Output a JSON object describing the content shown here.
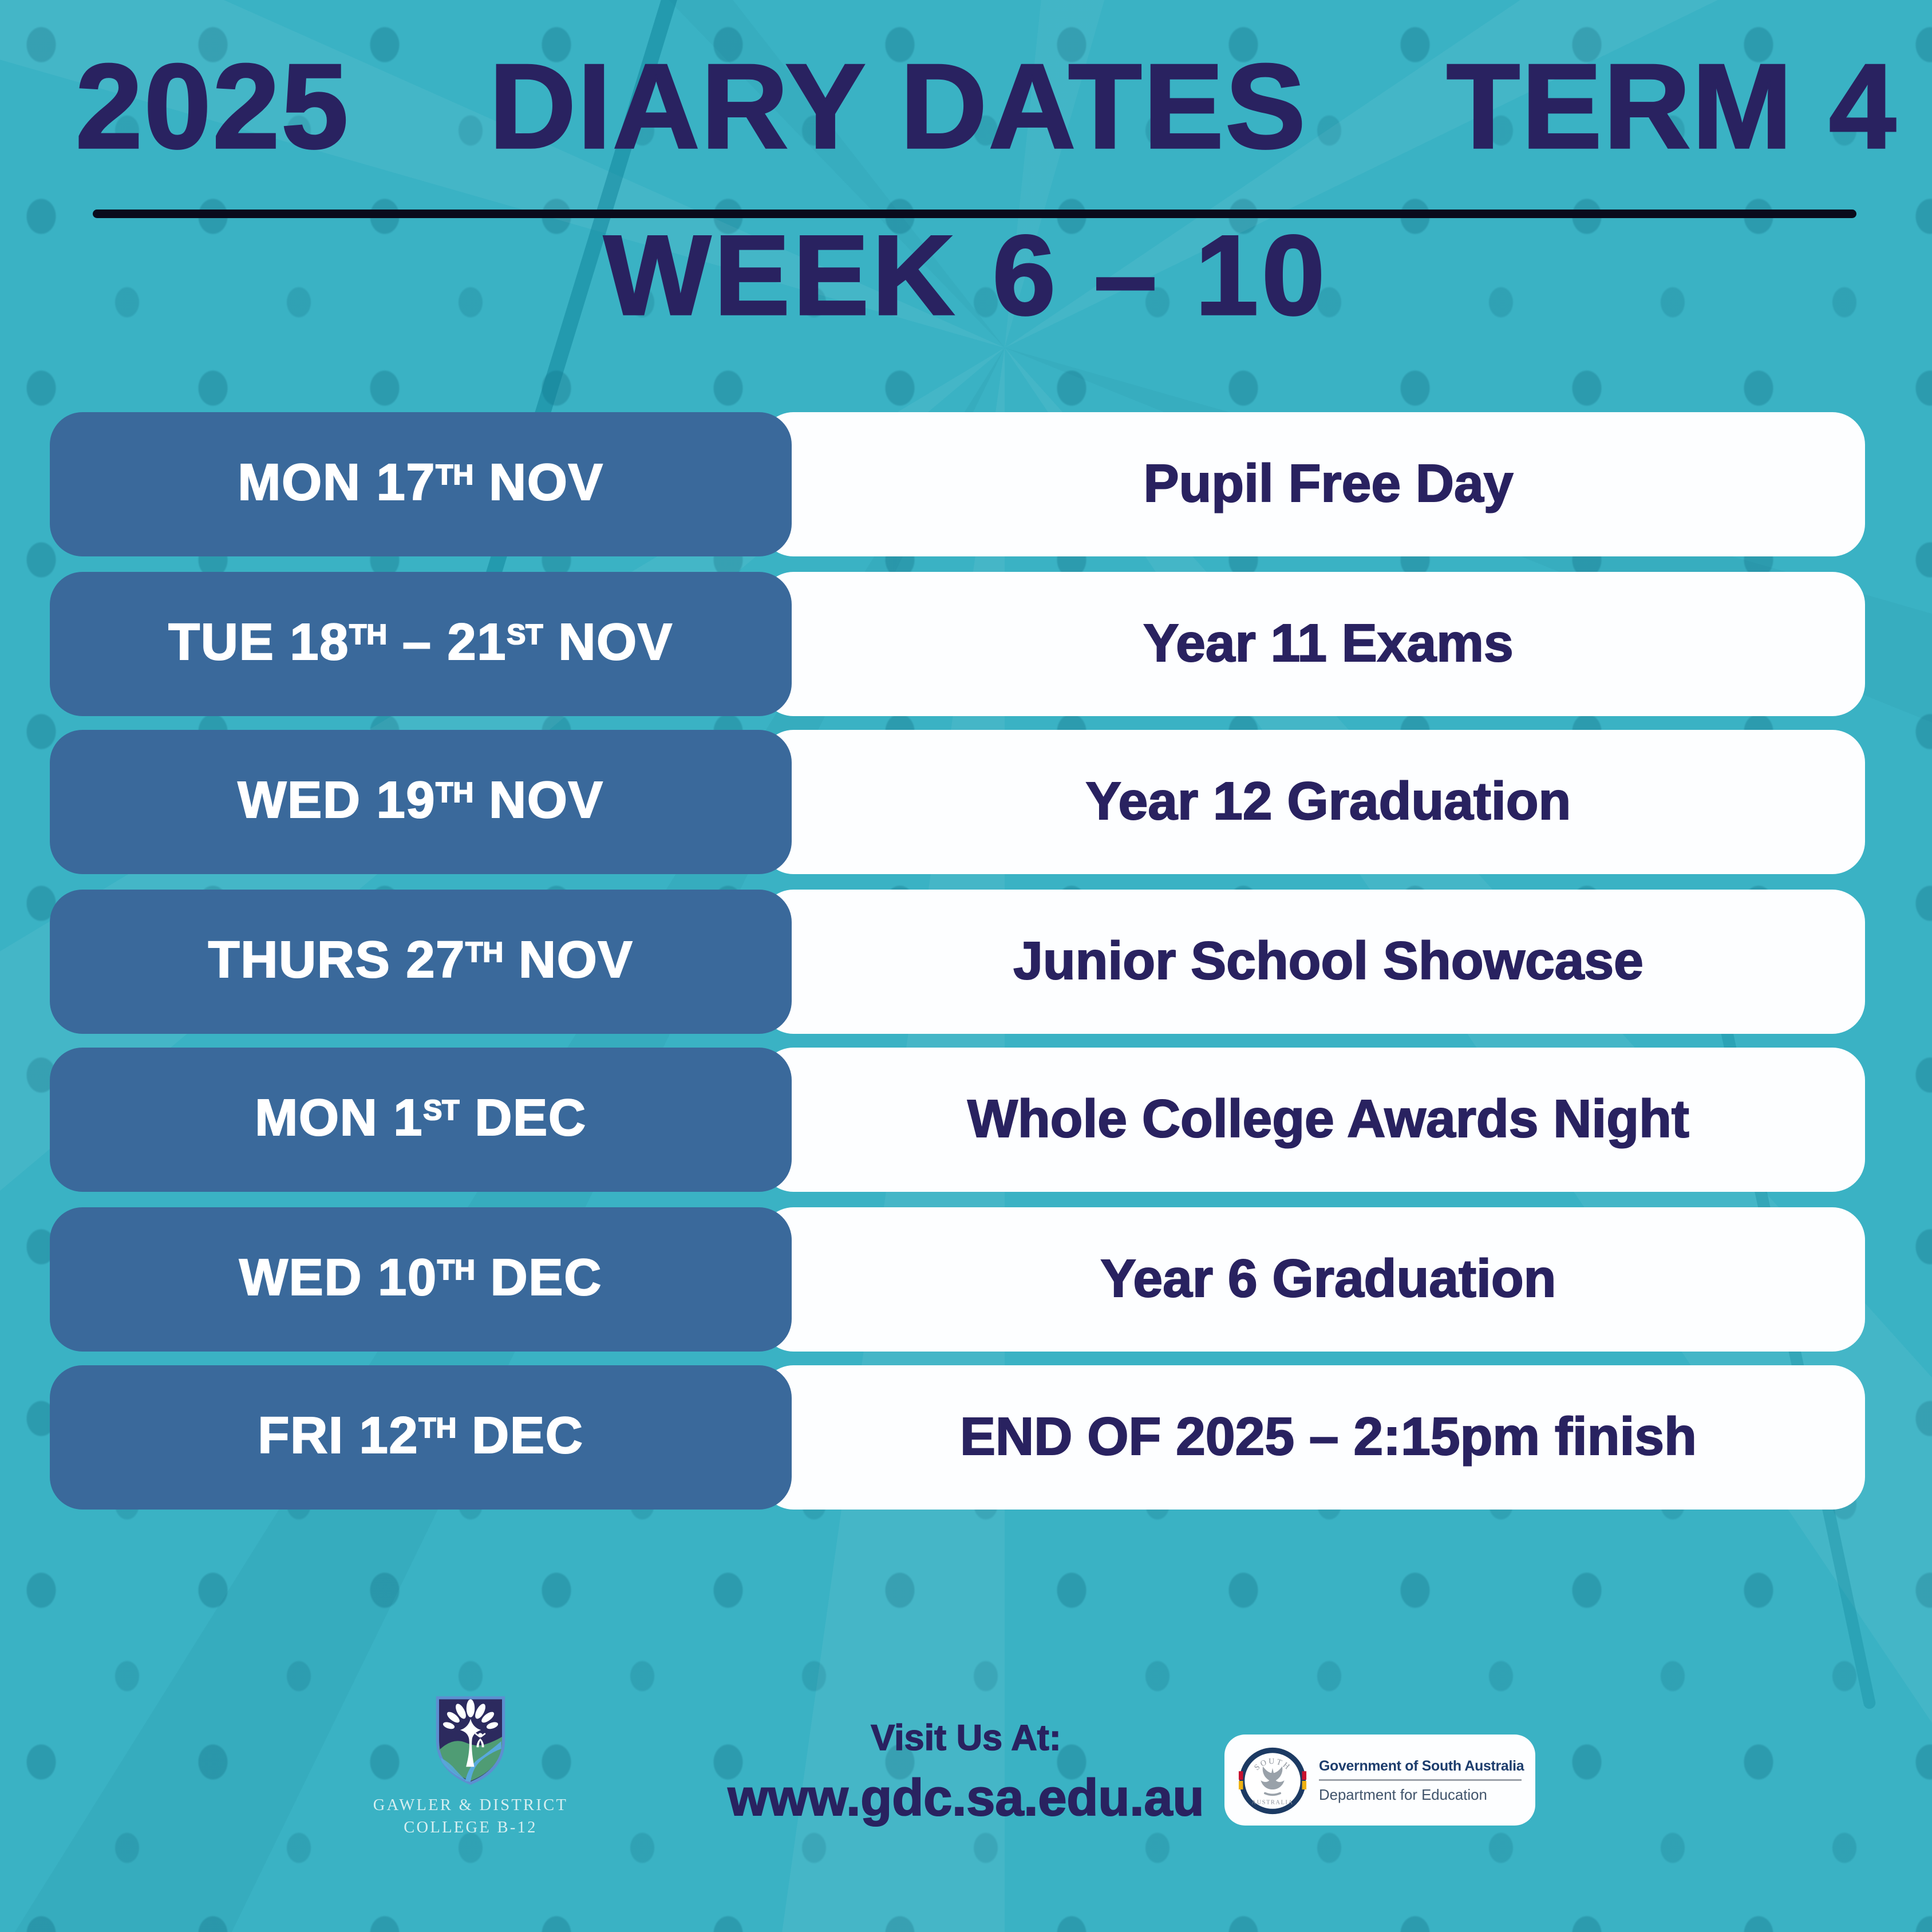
{
  "header": {
    "title_year": "2025",
    "title_main": "DIARY DATES",
    "title_term": "TERM 4",
    "subtitle": "WEEK 6 – 10"
  },
  "schedule": {
    "rows": [
      {
        "date_segments": [
          {
            "t": "MON 17"
          },
          {
            "t": "TH",
            "sup": true
          },
          {
            "t": " NOV"
          }
        ],
        "event": "Pupil Free Day"
      },
      {
        "date_segments": [
          {
            "t": "TUE 18"
          },
          {
            "t": "TH",
            "sup": true
          },
          {
            "t": " – 21"
          },
          {
            "t": "ST",
            "sup": true
          },
          {
            "t": " NOV"
          }
        ],
        "event": "Year 11 Exams"
      },
      {
        "date_segments": [
          {
            "t": "WED 19"
          },
          {
            "t": "TH",
            "sup": true
          },
          {
            "t": " NOV"
          }
        ],
        "event": "Year 12 Graduation"
      },
      {
        "date_segments": [
          {
            "t": "THURS 27"
          },
          {
            "t": "TH",
            "sup": true
          },
          {
            "t": " NOV"
          }
        ],
        "event": "Junior School Showcase"
      },
      {
        "date_segments": [
          {
            "t": "MON 1"
          },
          {
            "t": "ST",
            "sup": true
          },
          {
            "t": " DEC"
          }
        ],
        "event": "Whole College Awards Night"
      },
      {
        "date_segments": [
          {
            "t": "WED 10"
          },
          {
            "t": "TH",
            "sup": true
          },
          {
            "t": " DEC"
          }
        ],
        "event": "Year 6 Graduation"
      },
      {
        "date_segments": [
          {
            "t": "FRI 12"
          },
          {
            "t": "TH",
            "sup": true
          },
          {
            "t": " DEC"
          }
        ],
        "event": "END OF 2025 – 2:15pm finish"
      }
    ]
  },
  "footer": {
    "school": {
      "name_line1": "GAWLER & DISTRICT",
      "name_line2": "COLLEGE B-12"
    },
    "visit": {
      "label": "Visit Us At:",
      "website": "www.gdc.sa.edu.au"
    },
    "government": {
      "org": "Government of South Australia",
      "department": "Department for Education",
      "seal_text_top": "SOUTH",
      "seal_text_bottom": "AUSTRALIA"
    }
  },
  "colors": {
    "background_teal": "#3ab2c4",
    "pattern_dot_teal": "#2a9db2",
    "date_cell_blue": "#3a699b",
    "event_cell_white": "#fdfeff",
    "heading_navy": "#292260",
    "date_text_white": "#ffffff",
    "underline_black": "#0a0b1c"
  }
}
